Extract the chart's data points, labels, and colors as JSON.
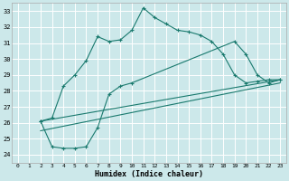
{
  "xlabel": "Humidex (Indice chaleur)",
  "bg_color": "#cce8ea",
  "grid_color": "#ffffff",
  "line_color": "#1a7a6e",
  "xlim": [
    -0.5,
    23.5
  ],
  "ylim": [
    23.5,
    33.5
  ],
  "yticks": [
    24,
    25,
    26,
    27,
    28,
    29,
    30,
    31,
    32,
    33
  ],
  "xticks": [
    0,
    1,
    2,
    3,
    4,
    5,
    6,
    7,
    8,
    9,
    10,
    11,
    12,
    13,
    14,
    15,
    16,
    17,
    18,
    19,
    20,
    21,
    22,
    23
  ],
  "curve1_x": [
    2,
    3,
    4,
    5,
    6,
    7,
    8,
    9,
    10,
    11,
    12,
    13,
    14,
    15,
    16,
    17,
    18,
    19,
    20,
    21,
    22,
    23
  ],
  "curve1_y": [
    26.1,
    26.3,
    28.3,
    29.0,
    29.9,
    31.4,
    31.1,
    31.2,
    31.8,
    33.2,
    32.6,
    32.2,
    31.8,
    31.7,
    31.5,
    31.1,
    30.3,
    29.0,
    28.5,
    28.6,
    28.7,
    28.7
  ],
  "curve2_x": [
    2,
    3,
    4,
    5,
    6,
    7,
    8,
    9,
    10,
    19,
    20,
    21,
    22,
    23
  ],
  "curve2_y": [
    26.1,
    24.5,
    24.4,
    24.4,
    24.5,
    25.7,
    27.8,
    28.3,
    28.5,
    31.1,
    30.3,
    29.0,
    28.5,
    28.7
  ],
  "line1_x": [
    2,
    23
  ],
  "line1_y": [
    26.1,
    28.7
  ],
  "line2_x": [
    2,
    23
  ],
  "line2_y": [
    25.5,
    28.5
  ]
}
